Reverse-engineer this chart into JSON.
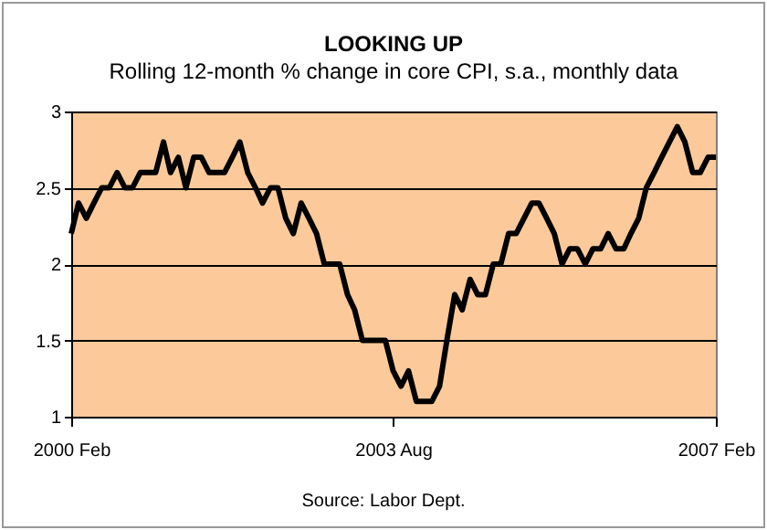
{
  "chart_data": {
    "type": "line",
    "title": "LOOKING UP",
    "subtitle": "Rolling 12-month % change in core CPI, s.a., monthly data",
    "annotations": [
      "Source: Labor Dept."
    ],
    "x": [
      "2000-02",
      "2000-03",
      "2000-04",
      "2000-05",
      "2000-06",
      "2000-07",
      "2000-08",
      "2000-09",
      "2000-10",
      "2000-11",
      "2000-12",
      "2001-01",
      "2001-02",
      "2001-03",
      "2001-04",
      "2001-05",
      "2001-06",
      "2001-07",
      "2001-08",
      "2001-09",
      "2001-10",
      "2001-11",
      "2001-12",
      "2002-01",
      "2002-02",
      "2002-03",
      "2002-04",
      "2002-05",
      "2002-06",
      "2002-07",
      "2002-08",
      "2002-09",
      "2002-10",
      "2002-11",
      "2002-12",
      "2003-01",
      "2003-02",
      "2003-03",
      "2003-04",
      "2003-05",
      "2003-06",
      "2003-07",
      "2003-08",
      "2003-09",
      "2003-10",
      "2003-11",
      "2003-12",
      "2004-01",
      "2004-02",
      "2004-03",
      "2004-04",
      "2004-05",
      "2004-06",
      "2004-07",
      "2004-08",
      "2004-09",
      "2004-10",
      "2004-11",
      "2004-12",
      "2005-01",
      "2005-02",
      "2005-03",
      "2005-04",
      "2005-05",
      "2005-06",
      "2005-07",
      "2005-08",
      "2005-09",
      "2005-10",
      "2005-11",
      "2005-12",
      "2006-01",
      "2006-02",
      "2006-03",
      "2006-04",
      "2006-05",
      "2006-06",
      "2006-07",
      "2006-08",
      "2006-09",
      "2006-10",
      "2006-11",
      "2006-12",
      "2007-01",
      "2007-02"
    ],
    "series": [
      {
        "color": "#000000",
        "values": [
          2.2,
          2.4,
          2.3,
          2.4,
          2.5,
          2.5,
          2.6,
          2.5,
          2.5,
          2.6,
          2.6,
          2.6,
          2.8,
          2.6,
          2.7,
          2.5,
          2.7,
          2.7,
          2.6,
          2.6,
          2.6,
          2.7,
          2.8,
          2.6,
          2.5,
          2.4,
          2.5,
          2.5,
          2.3,
          2.2,
          2.4,
          2.3,
          2.2,
          2.0,
          2.0,
          2.0,
          1.8,
          1.7,
          1.5,
          1.5,
          1.5,
          1.5,
          1.3,
          1.2,
          1.3,
          1.1,
          1.1,
          1.1,
          1.2,
          1.5,
          1.8,
          1.7,
          1.9,
          1.8,
          1.8,
          2.0,
          2.0,
          2.2,
          2.2,
          2.3,
          2.4,
          2.4,
          2.3,
          2.2,
          2.0,
          2.1,
          2.1,
          2.0,
          2.1,
          2.1,
          2.2,
          2.1,
          2.1,
          2.2,
          2.3,
          2.5,
          2.6,
          2.7,
          2.8,
          2.9,
          2.8,
          2.6,
          2.6,
          2.7,
          2.7
        ]
      }
    ],
    "xlim": [
      "2000-02",
      "2007-02"
    ],
    "xticks": [
      {
        "value": "2000-02",
        "label": "2000 Feb"
      },
      {
        "value": "2003-08",
        "label": "2003 Aug"
      },
      {
        "value": "2007-02",
        "label": "2007 Feb"
      }
    ],
    "ylim": [
      1,
      3
    ],
    "yticks": [
      1,
      1.5,
      2,
      2.5,
      3
    ],
    "grid": "y",
    "legend": false,
    "marker": "none",
    "line_style": "solid"
  }
}
